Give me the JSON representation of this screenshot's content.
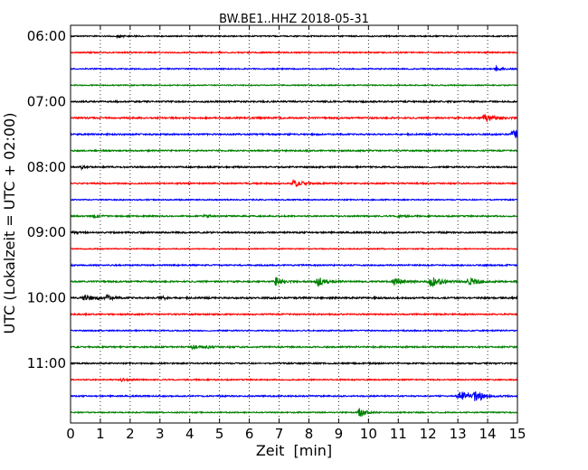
{
  "chart_data": {
    "type": "line",
    "title": "BW.BE1..HHZ 2018-05-31",
    "xlabel": "Zeit  [min]",
    "ylabel": "UTC (Lokalzeit = UTC + 02:00)",
    "xlim": [
      0,
      15
    ],
    "x_ticks": [
      0,
      1,
      2,
      3,
      4,
      5,
      6,
      7,
      8,
      9,
      10,
      11,
      12,
      13,
      14,
      15
    ],
    "x_tick_labels": [
      "0",
      "1",
      "2",
      "3",
      "4",
      "5",
      "6",
      "7",
      "8",
      "9",
      "10",
      "11",
      "12",
      "13",
      "14",
      "15"
    ],
    "grid": "vertical dotted at each minute",
    "trace_start_times": [
      "06:00",
      "06:15",
      "06:30",
      "06:45",
      "07:00",
      "07:15",
      "07:30",
      "07:45",
      "08:00",
      "08:15",
      "08:30",
      "08:45",
      "09:00",
      "09:15",
      "09:30",
      "09:45",
      "10:00",
      "10:15",
      "10:30",
      "10:45",
      "11:00",
      "11:15",
      "11:30",
      "11:45"
    ],
    "y_tick_labels": [
      "06:00",
      "07:00",
      "08:00",
      "09:00",
      "10:00",
      "11:00"
    ],
    "colors": [
      "#000000",
      "#ff0000",
      "#0000ff",
      "#008000"
    ],
    "base_noise": [
      0.7,
      0.7,
      0.7,
      0.6,
      0.9,
      0.9,
      0.9,
      0.8,
      0.9,
      0.8,
      0.7,
      0.8,
      0.9,
      0.6,
      0.8,
      0.9,
      1.0,
      0.8,
      0.7,
      0.9,
      0.8,
      0.7,
      0.8,
      0.7
    ],
    "events": [
      {
        "trace": 0,
        "t": 1.6,
        "amp": 1.5,
        "dur": 0.3
      },
      {
        "trace": 2,
        "t": 14.3,
        "amp": 2.5,
        "dur": 0.25
      },
      {
        "trace": 5,
        "t": 13.9,
        "amp": 5.0,
        "dur": 0.45
      },
      {
        "trace": 6,
        "t": 14.85,
        "amp": 6.0,
        "dur": 0.3
      },
      {
        "trace": 8,
        "t": 0.35,
        "amp": 1.8,
        "dur": 0.15
      },
      {
        "trace": 9,
        "t": 7.5,
        "amp": 4.0,
        "dur": 0.45
      },
      {
        "trace": 11,
        "t": 0.8,
        "amp": 2.0,
        "dur": 0.2
      },
      {
        "trace": 11,
        "t": 4.5,
        "amp": 1.8,
        "dur": 0.25
      },
      {
        "trace": 11,
        "t": 11.0,
        "amp": 2.0,
        "dur": 0.25
      },
      {
        "trace": 12,
        "t": 0.1,
        "amp": 2.0,
        "dur": 0.15
      },
      {
        "trace": 15,
        "t": 6.9,
        "amp": 5.5,
        "dur": 0.25
      },
      {
        "trace": 15,
        "t": 8.3,
        "amp": 6.0,
        "dur": 0.35
      },
      {
        "trace": 15,
        "t": 10.9,
        "amp": 4.5,
        "dur": 0.4
      },
      {
        "trace": 15,
        "t": 12.1,
        "amp": 6.0,
        "dur": 0.5
      },
      {
        "trace": 15,
        "t": 13.4,
        "amp": 5.0,
        "dur": 0.4
      },
      {
        "trace": 16,
        "t": 0.5,
        "amp": 2.8,
        "dur": 0.6
      },
      {
        "trace": 16,
        "t": 1.2,
        "amp": 3.5,
        "dur": 0.2
      },
      {
        "trace": 16,
        "t": 3.0,
        "amp": 2.0,
        "dur": 0.3
      },
      {
        "trace": 19,
        "t": 4.1,
        "amp": 2.0,
        "dur": 0.3
      },
      {
        "trace": 19,
        "t": 4.6,
        "amp": 1.5,
        "dur": 0.2
      },
      {
        "trace": 21,
        "t": 1.7,
        "amp": 1.5,
        "dur": 0.3
      },
      {
        "trace": 22,
        "t": 13.1,
        "amp": 5.0,
        "dur": 0.6
      },
      {
        "trace": 22,
        "t": 13.6,
        "amp": 6.5,
        "dur": 0.3
      },
      {
        "trace": 23,
        "t": 9.7,
        "amp": 7.0,
        "dur": 0.25
      }
    ]
  }
}
